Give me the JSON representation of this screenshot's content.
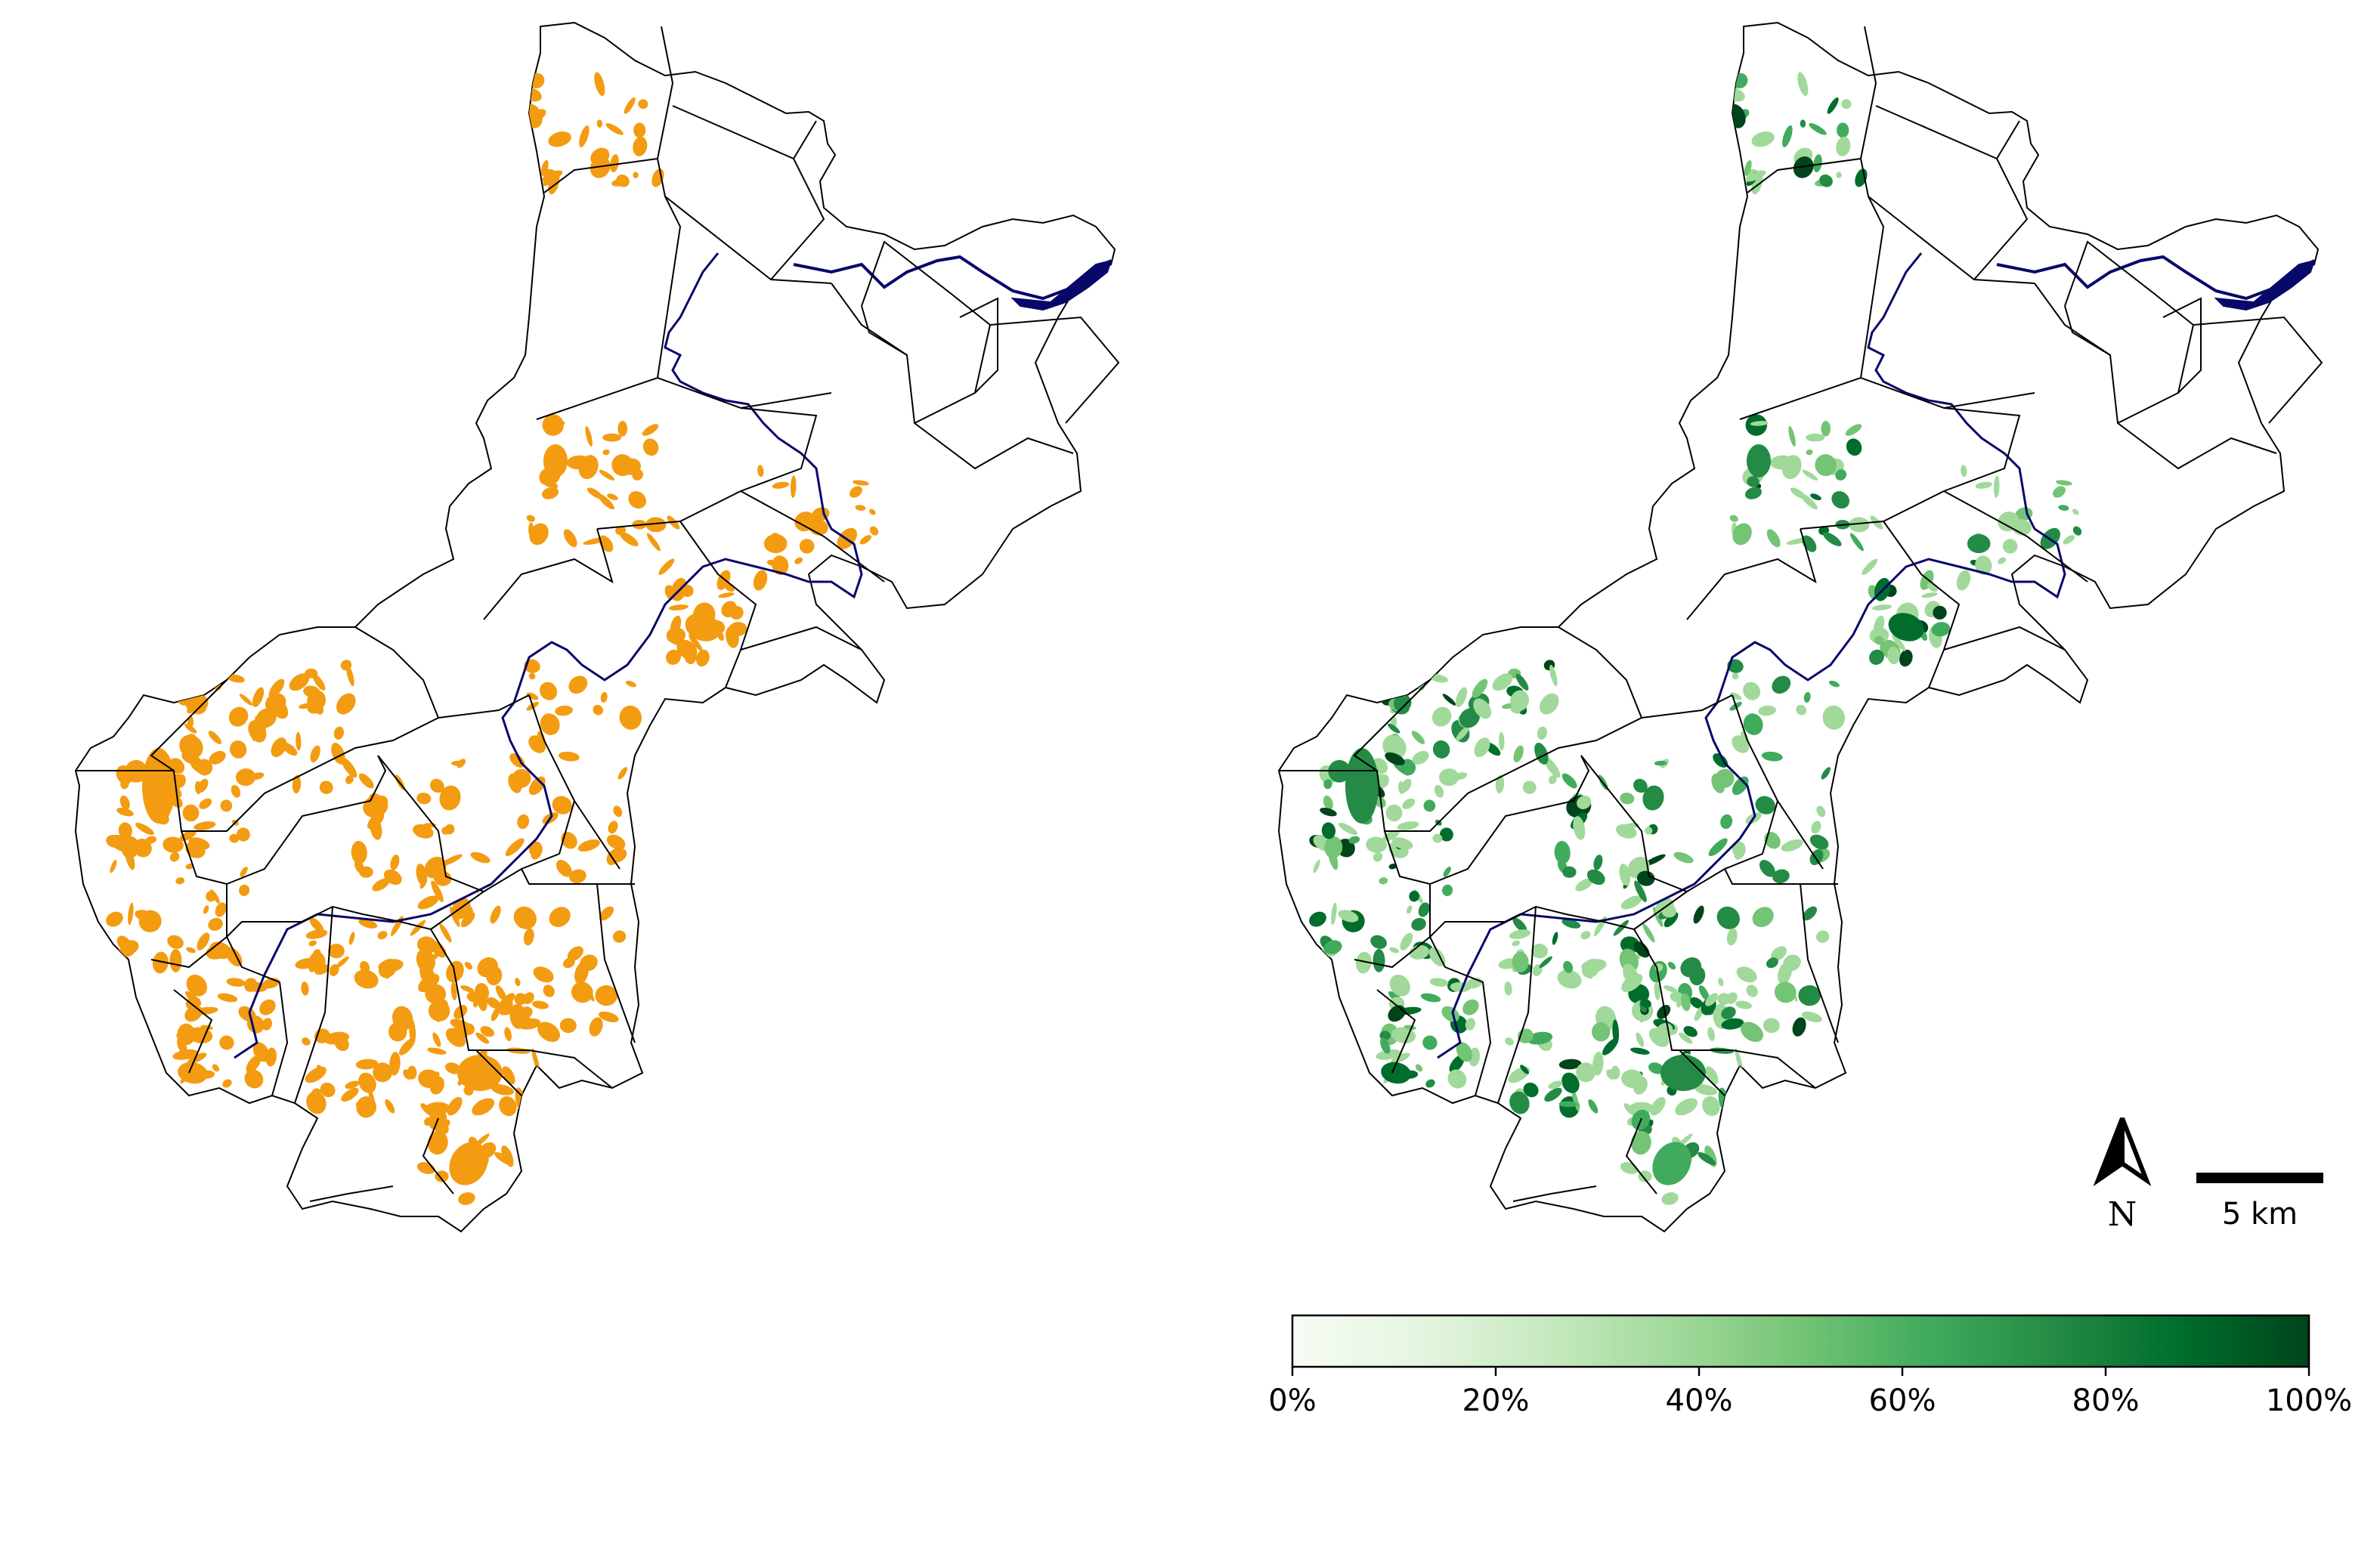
{
  "colors": {
    "background": "#ffffff",
    "boundary": "#000000",
    "water": "#08086b",
    "panel_left_fill": "#f39c12",
    "colorbar_stops": [
      "#f7fcf5",
      "#e5f5e0",
      "#c7e9c0",
      "#a1d99b",
      "#74c476",
      "#41ab5d",
      "#238b45",
      "#006d2c",
      "#00441b"
    ]
  },
  "map_panels": [
    {
      "name": "left-map",
      "fill_mode": "solid",
      "fill_color": "#f39c12"
    },
    {
      "name": "right-map",
      "fill_mode": "gradient",
      "cmap": "Greens"
    }
  ],
  "north_arrow": {
    "icon": "north-arrow-icon",
    "label": "N"
  },
  "scale_bar": {
    "label": "5 km"
  },
  "colorbar": {
    "range": [
      0,
      100
    ],
    "unit": "%",
    "ticks": [
      {
        "value": 0,
        "label": "0%"
      },
      {
        "value": 20,
        "label": "20%"
      },
      {
        "value": 40,
        "label": "40%"
      },
      {
        "value": 60,
        "label": "60%"
      },
      {
        "value": 80,
        "label": "80%"
      },
      {
        "value": 100,
        "label": "100%"
      }
    ]
  }
}
